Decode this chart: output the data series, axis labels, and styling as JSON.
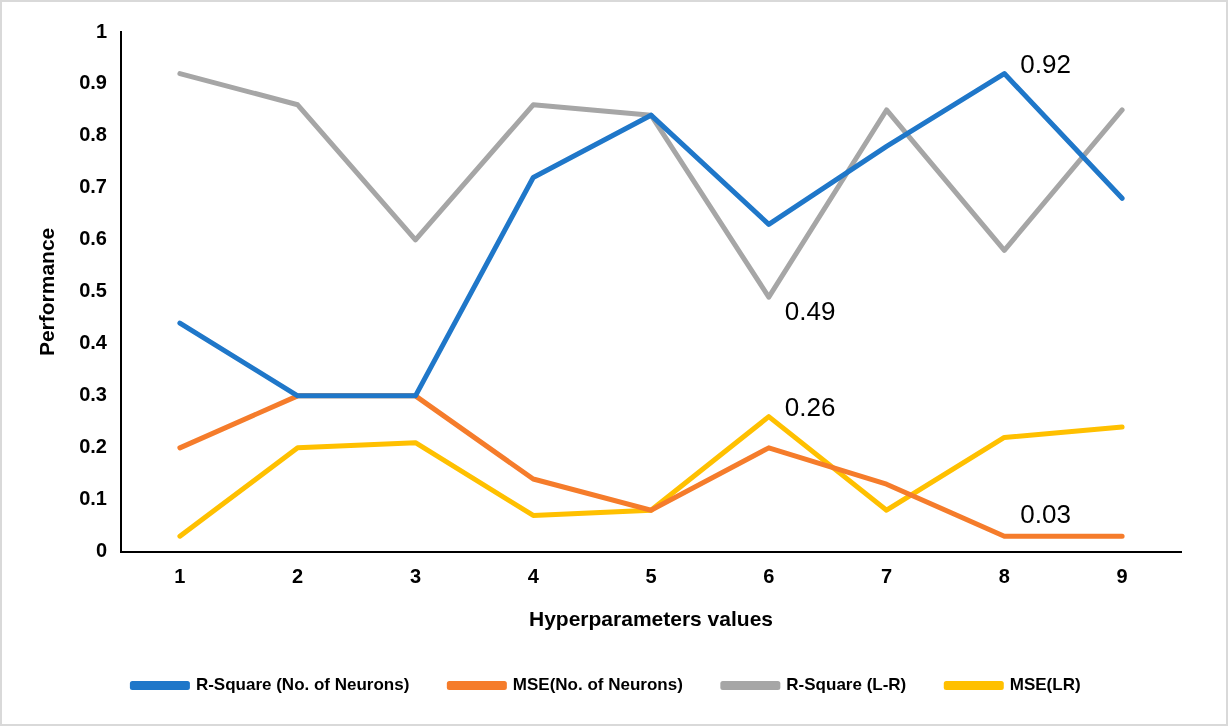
{
  "chart_data": {
    "type": "line",
    "xlabel": "Hyperparameters values",
    "ylabel": "Performance",
    "categories": [
      "1",
      "2",
      "3",
      "4",
      "5",
      "6",
      "7",
      "8",
      "9"
    ],
    "series": [
      {
        "name": "R-Square (No. of Neurons)",
        "color": "#1f77c9",
        "values": [
          0.44,
          0.3,
          0.3,
          0.72,
          0.84,
          0.63,
          0.78,
          0.92,
          0.68
        ]
      },
      {
        "name": "MSE(No. of Neurons)",
        "color": "#f57c2b",
        "values": [
          0.2,
          0.3,
          0.3,
          0.14,
          0.08,
          0.2,
          0.13,
          0.03,
          0.03
        ]
      },
      {
        "name": "R-Square (L-R)",
        "color": "#a6a6a6",
        "values": [
          0.92,
          0.86,
          0.6,
          0.86,
          0.84,
          0.49,
          0.85,
          0.58,
          0.85
        ]
      },
      {
        "name": "MSE(LR)",
        "color": "#ffc000",
        "values": [
          0.03,
          0.2,
          0.21,
          0.07,
          0.08,
          0.26,
          0.08,
          0.22,
          0.24
        ]
      }
    ],
    "ylim": [
      0,
      1
    ],
    "yticks": [
      0,
      0.1,
      0.2,
      0.3,
      0.4,
      0.5,
      0.6,
      0.7,
      0.8,
      0.9,
      1
    ],
    "grid": false,
    "legend": "bottom",
    "marker": "none",
    "line_style": "solid",
    "annotations": [
      {
        "text": "0.92",
        "x": "8",
        "y": 0.92
      },
      {
        "text": "0.49",
        "x": "6",
        "y": 0.49
      },
      {
        "text": "0.26",
        "x": "6",
        "y": 0.26
      },
      {
        "text": "0.03",
        "x": "8",
        "y": 0.03
      }
    ]
  }
}
